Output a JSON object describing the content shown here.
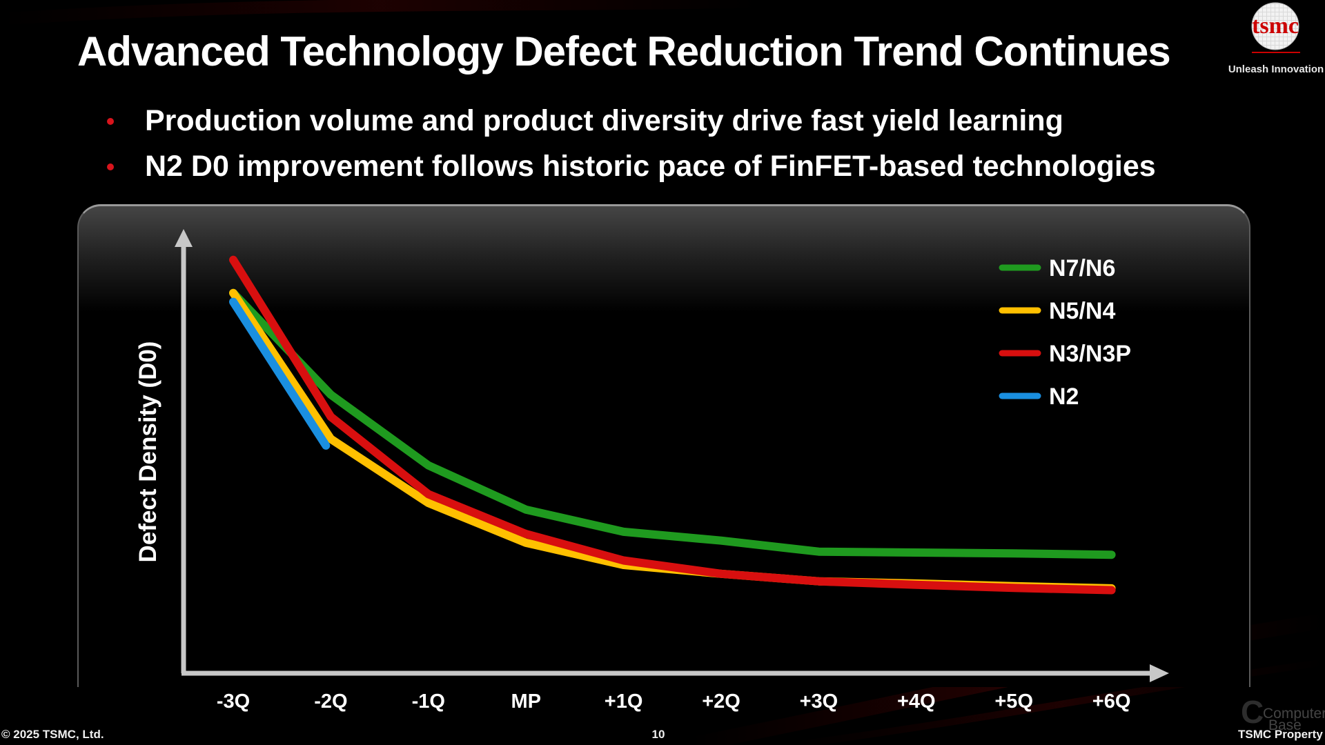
{
  "slide": {
    "title": "Advanced Technology Defect Reduction Trend Continues",
    "bullets": [
      "Production volume and product diversity drive fast yield learning",
      "N2 D0 improvement follows historic pace of FinFET-based technologies"
    ],
    "logo": {
      "text": "tsmc",
      "tagline": "Unleash Innovation"
    },
    "footer": {
      "copyright": "© 2025 TSMC, Ltd.",
      "page_number": "10",
      "property": "TSMC Property"
    },
    "watermark": {
      "line1": "Computer",
      "line2": "Base",
      "letter": "C"
    },
    "colors": {
      "background": "#000000",
      "bullet": "#d8141c",
      "accent": "#cc0000"
    }
  },
  "chart_data": {
    "type": "line",
    "title": "",
    "xlabel": "",
    "ylabel": "Defect Density (D0)",
    "categories": [
      "-3Q",
      "-2Q",
      "-1Q",
      "MP",
      "+1Q",
      "+2Q",
      "+3Q",
      "+4Q",
      "+5Q",
      "+6Q"
    ],
    "ylim": [
      0,
      100
    ],
    "legend_position": "top-right",
    "series": [
      {
        "name": "N7/N6",
        "color": "#1f9a1f",
        "x": [
          -3,
          -2,
          -1,
          0,
          1,
          2,
          3,
          4,
          5,
          6
        ],
        "values": [
          86,
          63,
          47,
          37,
          32,
          30,
          27.5,
          27.3,
          27.1,
          26.8
        ]
      },
      {
        "name": "N5/N4",
        "color": "#ffc000",
        "x": [
          -3,
          -2,
          -1,
          0,
          1,
          2,
          3,
          4,
          5,
          6
        ],
        "values": [
          86,
          53,
          38.5,
          29.5,
          24.5,
          22.5,
          20.8,
          20.3,
          19.7,
          19.2
        ]
      },
      {
        "name": "N3/N3P",
        "color": "#d80f0f",
        "x": [
          -3,
          -2,
          -1,
          0,
          1,
          2,
          3,
          4,
          5,
          6
        ],
        "values": [
          93.5,
          58,
          40.5,
          31.5,
          25.5,
          22.5,
          20.8,
          20,
          19.3,
          18.8
        ]
      },
      {
        "name": "N2",
        "color": "#1a8fe0",
        "x": [
          -3,
          -2.05
        ],
        "values": [
          84,
          51.5
        ]
      }
    ]
  }
}
